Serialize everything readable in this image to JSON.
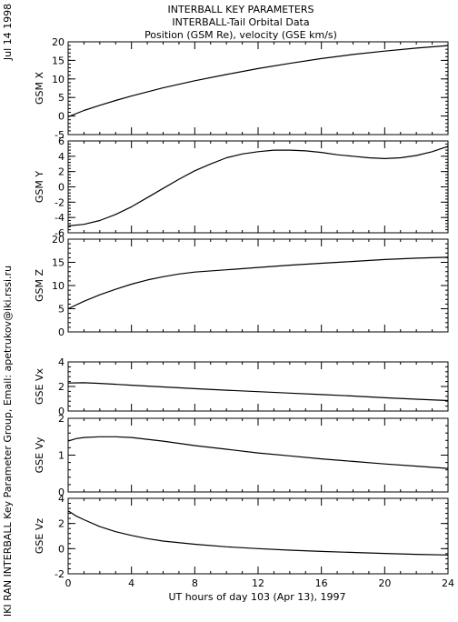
{
  "header": {
    "title_lines": [
      "INTERBALL KEY PARAMETERS",
      "INTERBALL-Tail Orbital Data",
      "Position (GSM Re), velocity (GSE km/s)"
    ],
    "side_date": "Jul 14 1998",
    "side_credit": "IKI RAN INTERBALL Key Parameter Group, Email: apetrukov@iki.rssi.ru"
  },
  "colors": {
    "line": "#000000",
    "background": "#ffffff"
  },
  "chart_data": {
    "type": "line",
    "xlabel": "UT hours of day 103 (Apr 13), 1997",
    "xlim": [
      0,
      24
    ],
    "xticks": [
      0,
      4,
      8,
      12,
      16,
      20,
      24
    ],
    "xticklabels": [
      "0",
      "4",
      "8",
      "12",
      "16",
      "20",
      "24"
    ],
    "panels": [
      {
        "ylabel": "GSM X",
        "ylim": [
          -5,
          20
        ],
        "yticks": [
          -5,
          0,
          5,
          10,
          15,
          20
        ],
        "series": [
          {
            "x": [
              0,
              1,
              2,
              3,
              4,
              6,
              8,
              10,
              12,
              14,
              16,
              18,
              20,
              22,
              24
            ],
            "y": [
              -0.2,
              1.5,
              2.9,
              4.2,
              5.4,
              7.6,
              9.5,
              11.2,
              12.8,
              14.2,
              15.5,
              16.6,
              17.5,
              18.3,
              19.0
            ]
          }
        ]
      },
      {
        "ylabel": "GSM Y",
        "ylim": [
          -6,
          6
        ],
        "yticks": [
          -6,
          -4,
          -2,
          0,
          2,
          4,
          6
        ],
        "series": [
          {
            "x": [
              0,
              1,
              2,
              3,
              4,
              5,
              6,
              7,
              8,
              9,
              10,
              11,
              12,
              13,
              14,
              15,
              16,
              17,
              18,
              19,
              20,
              21,
              22,
              23,
              24
            ],
            "y": [
              -5.1,
              -4.9,
              -4.4,
              -3.6,
              -2.6,
              -1.4,
              -0.2,
              1.0,
              2.1,
              3.0,
              3.8,
              4.3,
              4.6,
              4.8,
              4.8,
              4.7,
              4.5,
              4.2,
              4.0,
              3.8,
              3.7,
              3.8,
              4.1,
              4.6,
              5.3
            ]
          }
        ]
      },
      {
        "ylabel": "GSM Z",
        "ylim": [
          0,
          20
        ],
        "yticks": [
          0,
          5,
          10,
          15,
          20
        ],
        "series": [
          {
            "x": [
              0,
              1,
              2,
              3,
              4,
              5,
              6,
              7,
              8,
              10,
              12,
              14,
              16,
              18,
              20,
              22,
              24
            ],
            "y": [
              5.0,
              6.6,
              8.0,
              9.2,
              10.3,
              11.2,
              11.9,
              12.5,
              12.9,
              13.4,
              13.9,
              14.4,
              14.8,
              15.2,
              15.6,
              15.9,
              16.1
            ]
          }
        ]
      },
      {
        "ylabel": "GSE Vx",
        "ylim": [
          0,
          4
        ],
        "yticks": [
          0,
          2,
          4
        ],
        "series": [
          {
            "x": [
              0,
              1,
              2,
              4,
              6,
              8,
              10,
              12,
              14,
              16,
              18,
              20,
              22,
              24
            ],
            "y": [
              2.28,
              2.3,
              2.25,
              2.1,
              1.96,
              1.82,
              1.7,
              1.58,
              1.46,
              1.34,
              1.22,
              1.08,
              0.96,
              0.85
            ]
          }
        ]
      },
      {
        "ylabel": "GSE Vy",
        "ylim": [
          0,
          2
        ],
        "yticks": [
          0,
          1,
          2
        ],
        "series": [
          {
            "x": [
              0,
              0.5,
              1,
              2,
              3,
              4,
              6,
              8,
              10,
              12,
              14,
              16,
              18,
              20,
              22,
              24
            ],
            "y": [
              1.38,
              1.45,
              1.48,
              1.5,
              1.5,
              1.48,
              1.38,
              1.26,
              1.16,
              1.06,
              0.98,
              0.9,
              0.83,
              0.76,
              0.7,
              0.64
            ]
          }
        ]
      },
      {
        "ylabel": "GSE Vz",
        "ylim": [
          -2,
          4
        ],
        "yticks": [
          -2,
          0,
          2,
          4
        ],
        "series": [
          {
            "x": [
              0,
              0.5,
              1,
              2,
              3,
              4,
              5,
              6,
              8,
              10,
              12,
              14,
              16,
              18,
              20,
              22,
              24
            ],
            "y": [
              3.0,
              2.6,
              2.3,
              1.75,
              1.35,
              1.05,
              0.8,
              0.6,
              0.35,
              0.15,
              0.0,
              -0.12,
              -0.22,
              -0.3,
              -0.38,
              -0.45,
              -0.5
            ]
          }
        ]
      }
    ]
  }
}
